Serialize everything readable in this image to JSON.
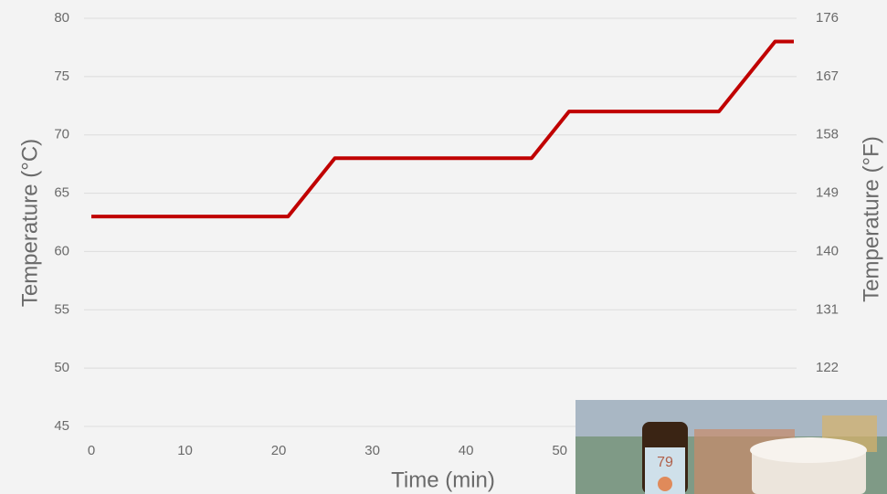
{
  "chart_data": {
    "type": "line",
    "x_label": "Time (min)",
    "y_label": "Temperature (°C)",
    "y2_label": "Temperature (°F)",
    "x": [
      0,
      21,
      26,
      47,
      51,
      67,
      73,
      75
    ],
    "series": [
      {
        "color": "#c00000",
        "values": [
          63,
          63,
          68,
          68,
          72,
          72,
          78,
          78
        ]
      }
    ],
    "xlim": [
      0,
      75
    ],
    "xticks": [
      0,
      10,
      20,
      30,
      40,
      50
    ],
    "ylim": [
      45,
      80
    ],
    "yticks": [
      45,
      50,
      55,
      60,
      65,
      70,
      75,
      80
    ],
    "y2lim": [
      113,
      176
    ],
    "y2ticks": [
      122,
      131,
      140,
      149,
      158,
      167,
      176
    ],
    "grid": true
  },
  "photo": {
    "bottle_label": "79"
  }
}
